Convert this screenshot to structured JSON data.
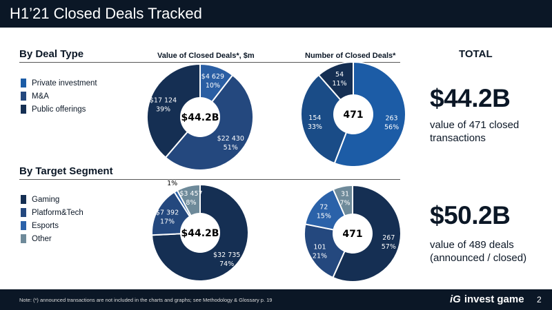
{
  "header": {
    "title": "H1’21 Closed Deals Tracked"
  },
  "sections": {
    "deal_type": "By Deal Type",
    "target_segment": "By Target Segment"
  },
  "columns": {
    "value": "Value of Closed Deals*, $m",
    "number": "Number of Closed Deals*",
    "total": "TOTAL"
  },
  "legend_deal_type": [
    {
      "label": "Private investment",
      "color": "#1c5ca6"
    },
    {
      "label": "M&A",
      "color": "#24487e"
    },
    {
      "label": "Public offerings",
      "color": "#152f53"
    }
  ],
  "legend_segment": [
    {
      "label": "Gaming",
      "color": "#152f53"
    },
    {
      "label": "Platform&Tech",
      "color": "#24487e"
    },
    {
      "label": "Esports",
      "color": "#2b62a9"
    },
    {
      "label": "Other",
      "color": "#6e8a9a"
    }
  ],
  "totals": [
    {
      "value": "$44.2B",
      "desc": "value of 471 closed transactions"
    },
    {
      "value": "$50.2B",
      "desc": "value of 489 deals (announced / closed)"
    }
  ],
  "footer": {
    "note": "Note: (*) announced transactions are not included in the charts and graphs; see Methodology & Glossary p. 19",
    "logo": "invest game",
    "page": "2"
  },
  "chart_data": [
    {
      "type": "pie",
      "title": "Value of Closed Deals*, $m — By Deal Type",
      "center_label": "$44.2B",
      "slices": [
        {
          "name": "Private investment",
          "value": 4629,
          "label": "$4 629",
          "pct": "10%",
          "color": "#2a5ea3"
        },
        {
          "name": "M&A",
          "value": 22430,
          "label": "$22 430",
          "pct": "51%",
          "color": "#24487e"
        },
        {
          "name": "Public offerings",
          "value": 17124,
          "label": "$17 124",
          "pct": "39%",
          "color": "#152f53"
        }
      ]
    },
    {
      "type": "pie",
      "title": "Number of Closed Deals* — By Deal Type",
      "center_label": "471",
      "slices": [
        {
          "name": "Private investment",
          "value": 263,
          "label": "263",
          "pct": "56%",
          "color": "#1c5ca6"
        },
        {
          "name": "M&A",
          "value": 154,
          "label": "154",
          "pct": "33%",
          "color": "#1a4c87"
        },
        {
          "name": "Public offerings",
          "value": 54,
          "label": "54",
          "pct": "11%",
          "color": "#152f53"
        }
      ]
    },
    {
      "type": "pie",
      "title": "Value of Closed Deals*, $m — By Target Segment",
      "center_label": "$44.2B",
      "slices": [
        {
          "name": "Gaming",
          "value": 32735,
          "label": "$32 735",
          "pct": "74%",
          "color": "#152f53"
        },
        {
          "name": "Platform&Tech",
          "value": 7392,
          "label": "$7 392",
          "pct": "17%",
          "color": "#24487e"
        },
        {
          "name": "Esports",
          "value": 500,
          "label": "",
          "pct": "1%",
          "color": "#2b62a9"
        },
        {
          "name": "Other",
          "value": 3457,
          "label": "$3 457",
          "pct": "8%",
          "color": "#6e8a9a"
        }
      ]
    },
    {
      "type": "pie",
      "title": "Number of Closed Deals* — By Target Segment",
      "center_label": "471",
      "slices": [
        {
          "name": "Gaming",
          "value": 267,
          "label": "267",
          "pct": "57%",
          "color": "#152f53"
        },
        {
          "name": "Platform&Tech",
          "value": 101,
          "label": "101",
          "pct": "21%",
          "color": "#24487e"
        },
        {
          "name": "Esports",
          "value": 72,
          "label": "72",
          "pct": "15%",
          "color": "#2b62a9"
        },
        {
          "name": "Other",
          "value": 31,
          "label": "31",
          "pct": "7%",
          "color": "#6e8a9a"
        }
      ]
    }
  ]
}
